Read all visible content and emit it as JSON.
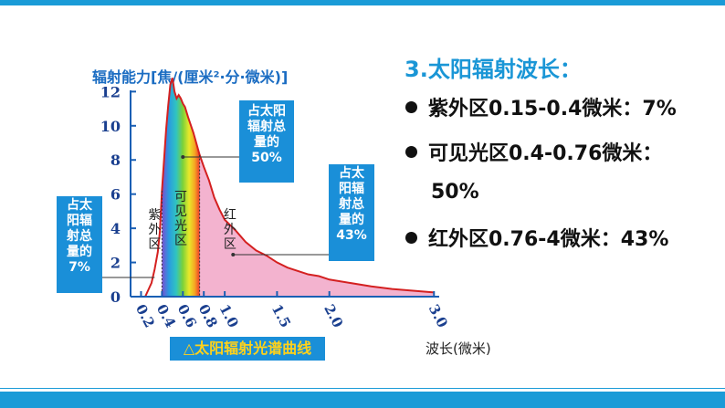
{
  "chart_data": {
    "type": "area",
    "ylabel": "辐射能力[焦/(厘米²·分·微米)]",
    "xlabel": "波长(微米)",
    "caption": "△太阳辐射光谱曲线",
    "yticks": [
      "0",
      "2",
      "4",
      "6",
      "8",
      "10",
      "12"
    ],
    "xticks": [
      "0.2",
      "0.4",
      "0.6",
      "0.8",
      "1.0",
      "1.5",
      "2.0",
      "3.0"
    ],
    "xticks_values": [
      0.2,
      0.4,
      0.6,
      0.8,
      1.0,
      1.5,
      2.0,
      3.0
    ],
    "yticks_values": [
      0,
      2,
      4,
      6,
      8,
      10,
      12
    ],
    "ylim": [
      0,
      12.5
    ],
    "xlim": [
      0.1,
      3.05
    ],
    "x": [
      0.24,
      0.27,
      0.3,
      0.33,
      0.36,
      0.38,
      0.4,
      0.42,
      0.44,
      0.46,
      0.48,
      0.5,
      0.52,
      0.54,
      0.56,
      0.58,
      0.6,
      0.62,
      0.65,
      0.7,
      0.76,
      0.8,
      0.85,
      0.9,
      0.95,
      1.0,
      1.1,
      1.2,
      1.3,
      1.4,
      1.5,
      1.6,
      1.7,
      1.8,
      1.9,
      2.0,
      2.2,
      2.4,
      2.6,
      2.8,
      3.0
    ],
    "y": [
      0.0,
      0.4,
      0.8,
      1.6,
      2.6,
      3.8,
      6.2,
      8.0,
      9.8,
      11.2,
      12.4,
      12.8,
      12.0,
      11.6,
      11.8,
      11.6,
      11.3,
      11.1,
      10.5,
      9.6,
      8.3,
      7.6,
      6.8,
      5.8,
      5.1,
      4.5,
      3.9,
      3.2,
      2.7,
      2.4,
      2.0,
      1.7,
      1.5,
      1.3,
      1.2,
      1.0,
      0.8,
      0.6,
      0.45,
      0.35,
      0.25
    ],
    "bands": [
      {
        "name": "紫外区",
        "from": 0.15,
        "to": 0.4
      },
      {
        "name": "可见光区",
        "from": 0.4,
        "to": 0.76
      },
      {
        "name": "红外区",
        "from": 0.76,
        "to": 4
      }
    ],
    "band_labels": [
      "紫外区",
      "可见光区",
      "红外区"
    ],
    "annotations": {
      "uv": "占太阳辐射总量的7%",
      "visible": "占太阳辐射总量的50%",
      "ir": "占太阳辐射总量的43%"
    },
    "colors": {
      "curve": "#d42020",
      "ir_fill": "#f3b3cf",
      "axis": "#1a5fb4"
    }
  },
  "right_panel": {
    "title": "3.太阳辐射波长：",
    "items": [
      "紫外区0.15-0.4微米：7%",
      "可见光区0.4-0.76微米：",
      "红外区0.76-4微米：43%"
    ],
    "item2_continuation": "50%"
  }
}
